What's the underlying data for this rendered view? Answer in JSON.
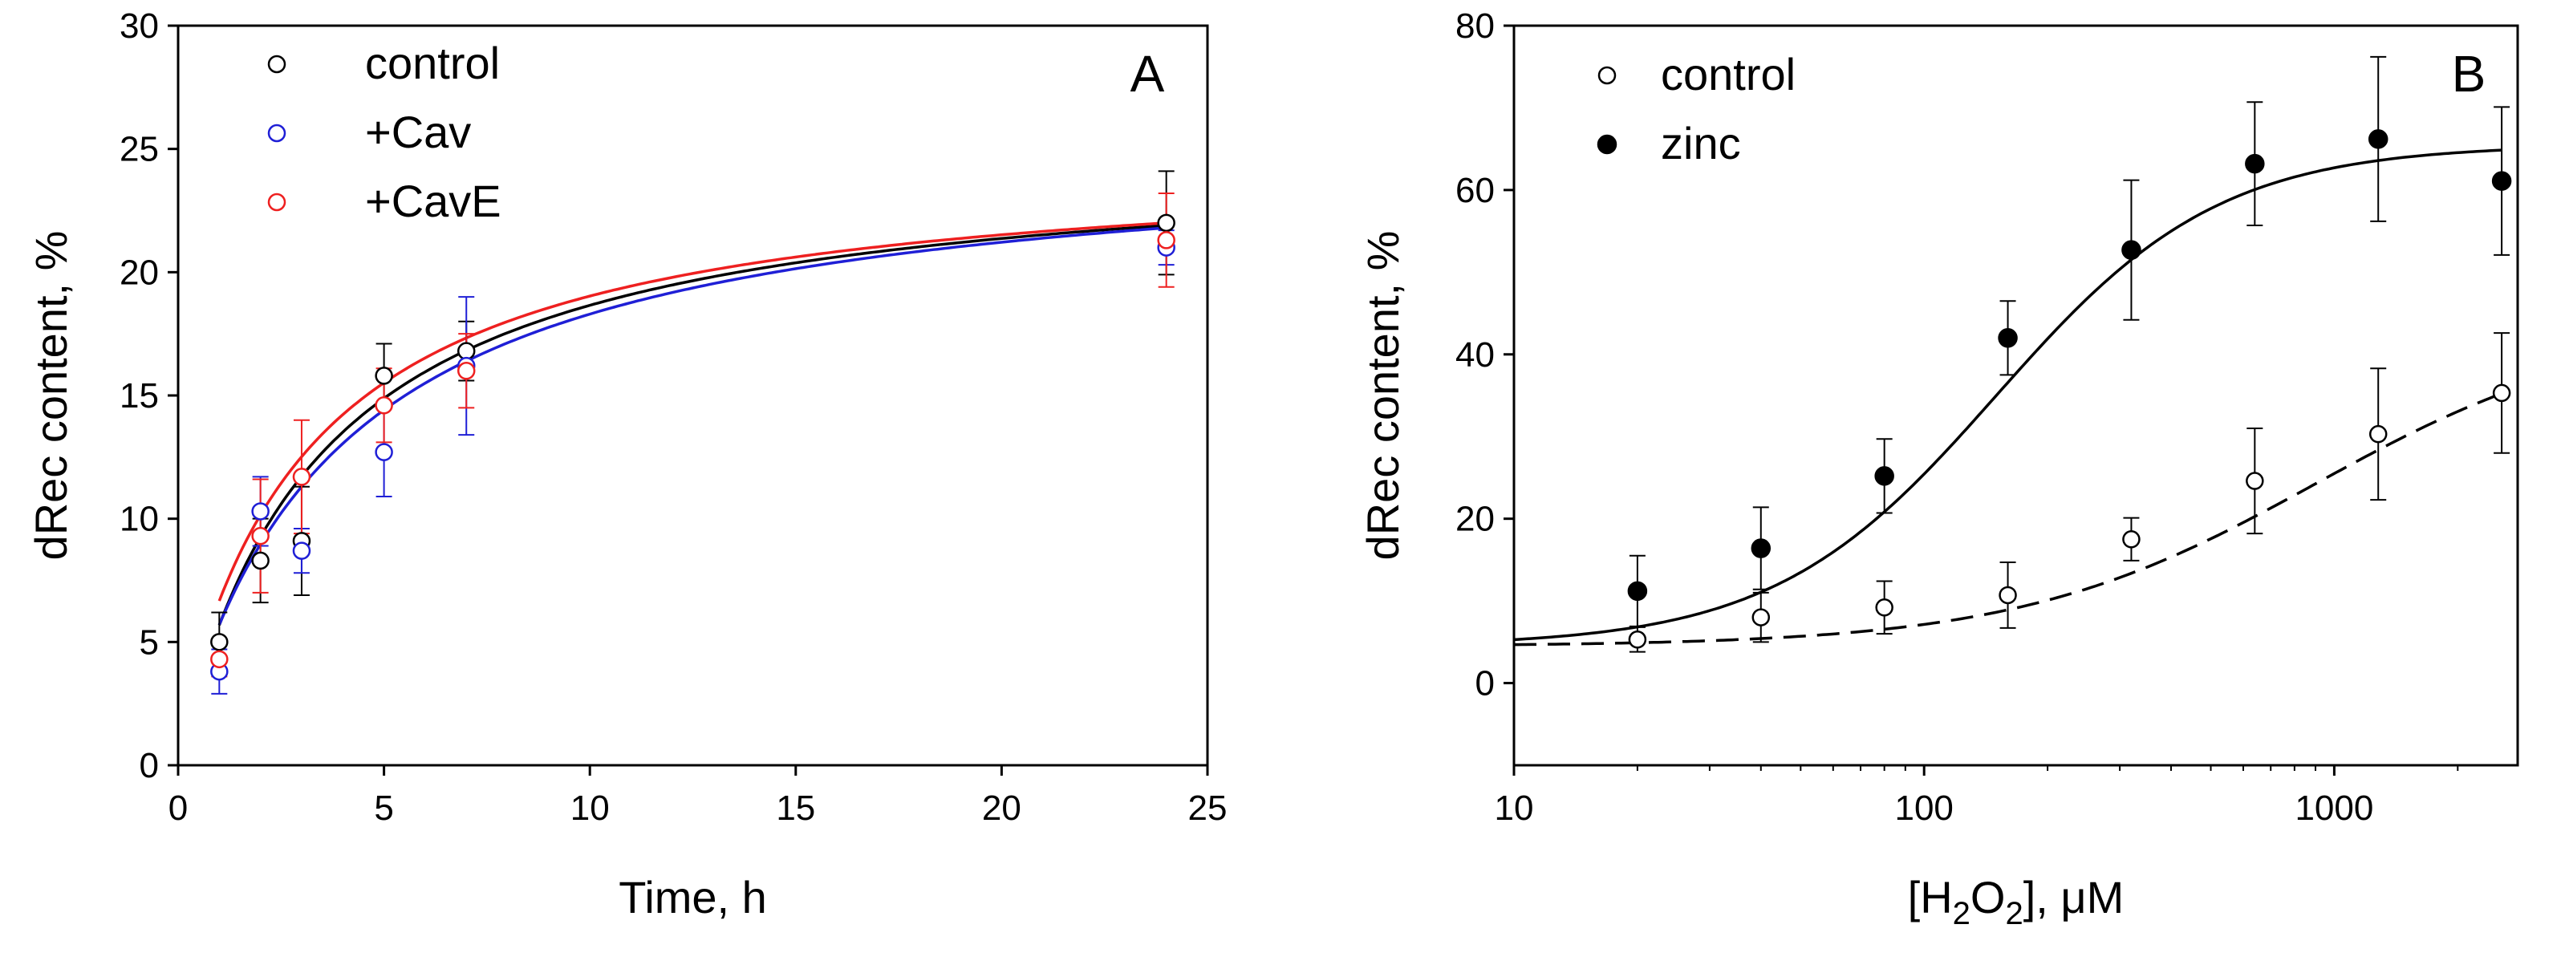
{
  "chart_data": [
    {
      "type": "scatter",
      "panel_label": "A",
      "xlabel": "Time, h",
      "ylabel": "dRec content, %",
      "xlim": [
        0,
        25
      ],
      "ylim": [
        0,
        30
      ],
      "xticks": [
        0,
        5,
        10,
        15,
        20,
        25
      ],
      "yticks": [
        0,
        5,
        10,
        15,
        20,
        25,
        30
      ],
      "legend_position": "top-left",
      "series": [
        {
          "name": "control",
          "color": "#000000",
          "marker": "open-circle",
          "points": [
            {
              "x": 1,
              "y": 5.0,
              "err": 1.2
            },
            {
              "x": 2,
              "y": 8.3,
              "err": 1.7
            },
            {
              "x": 3,
              "y": 9.1,
              "err": 2.2
            },
            {
              "x": 5,
              "y": 15.8,
              "err": 1.3
            },
            {
              "x": 7,
              "y": 16.8,
              "err": 1.2
            },
            {
              "x": 24,
              "y": 22.0,
              "err": 2.1
            }
          ],
          "fit": {
            "model": "hyperbola",
            "ymax": 25.0,
            "k": 3.4,
            "y0": 0.0,
            "x_from": 1,
            "x_to": 24
          }
        },
        {
          "name": "+Cav",
          "color": "#1f1fd6",
          "marker": "open-circle",
          "points": [
            {
              "x": 1,
              "y": 3.8,
              "err": 0.9
            },
            {
              "x": 2,
              "y": 10.3,
              "err": 1.4
            },
            {
              "x": 3,
              "y": 8.7,
              "err": 0.9
            },
            {
              "x": 5,
              "y": 12.7,
              "err": 1.8
            },
            {
              "x": 7,
              "y": 16.2,
              "err": 2.8
            },
            {
              "x": 24,
              "y": 21.0,
              "err": 0.7
            }
          ],
          "fit": {
            "model": "hyperbola",
            "ymax": 24.5,
            "k": 4.0,
            "y0": 0.8,
            "x_from": 1,
            "x_to": 24
          }
        },
        {
          "name": "+CavE",
          "color": "#ee2020",
          "marker": "open-circle",
          "points": [
            {
              "x": 1,
              "y": 4.3,
              "err": 0.7
            },
            {
              "x": 2,
              "y": 9.3,
              "err": 2.3
            },
            {
              "x": 3,
              "y": 11.7,
              "err": 2.3
            },
            {
              "x": 5,
              "y": 14.6,
              "err": 1.5
            },
            {
              "x": 7,
              "y": 16.0,
              "err": 1.5
            },
            {
              "x": 24,
              "y": 21.3,
              "err": 1.9
            }
          ],
          "fit": {
            "model": "hyperbola",
            "ymax": 23.8,
            "k": 3.2,
            "y0": 1.0,
            "x_from": 1,
            "x_to": 24
          }
        }
      ]
    },
    {
      "type": "scatter",
      "panel_label": "B",
      "xlabel_parts": [
        "[H",
        "2",
        "O",
        "2",
        "], μM"
      ],
      "ylabel": "dRec content, %",
      "xscale": "log",
      "xlim": [
        10,
        2800
      ],
      "ylim": [
        -10,
        80
      ],
      "xticks": [
        10,
        100,
        1000
      ],
      "xtick_labels": [
        "10",
        "100",
        "1000"
      ],
      "yticks": [
        0,
        20,
        40,
        60,
        80
      ],
      "legend_position": "top-left",
      "series": [
        {
          "name": "control",
          "color": "#000000",
          "marker": "open-circle",
          "line_style": "dashed",
          "points": [
            {
              "x": 20,
              "y": 5.3,
              "err": 1.5
            },
            {
              "x": 40,
              "y": 8.0,
              "err": 3.0
            },
            {
              "x": 80,
              "y": 9.2,
              "err": 3.2
            },
            {
              "x": 160,
              "y": 10.7,
              "err": 4.0
            },
            {
              "x": 320,
              "y": 17.5,
              "err": 2.6
            },
            {
              "x": 640,
              "y": 24.6,
              "err": 6.4
            },
            {
              "x": 1280,
              "y": 30.3,
              "err": 8.0
            },
            {
              "x": 2560,
              "y": 35.3,
              "err": 7.3
            }
          ],
          "fit": {
            "model": "sigmoid-log",
            "bottom": 4.5,
            "top": 44.0,
            "ec50": 900,
            "hill": 1.2,
            "x_from": 10,
            "x_to": 2560
          }
        },
        {
          "name": "zinc",
          "color": "#000000",
          "marker": "filled-circle",
          "line_style": "solid",
          "points": [
            {
              "x": 20,
              "y": 11.2,
              "err": 4.3
            },
            {
              "x": 40,
              "y": 16.4,
              "err": 5.0
            },
            {
              "x": 80,
              "y": 25.2,
              "err": 4.5
            },
            {
              "x": 160,
              "y": 42.0,
              "err": 4.5
            },
            {
              "x": 320,
              "y": 52.7,
              "err": 8.5
            },
            {
              "x": 640,
              "y": 63.2,
              "err": 7.5
            },
            {
              "x": 1280,
              "y": 66.2,
              "err": 10.0
            },
            {
              "x": 2560,
              "y": 61.1,
              "err": 9.0
            }
          ],
          "fit": {
            "model": "sigmoid-log",
            "bottom": 4.5,
            "top": 65.5,
            "ec50": 150,
            "hill": 1.6,
            "x_from": 10,
            "x_to": 2560
          }
        }
      ]
    }
  ]
}
